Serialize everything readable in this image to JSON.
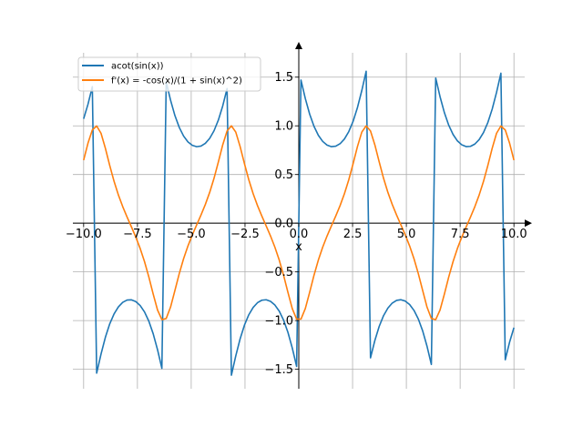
{
  "chart_data": {
    "type": "line",
    "title": "",
    "xlabel": "x",
    "ylabel": "",
    "xlim": [
      -10.5,
      10.5
    ],
    "ylim": [
      -1.7,
      1.75
    ],
    "grid": true,
    "legend_position": "top-left",
    "x_ticks": [
      -10.0,
      -7.5,
      -5.0,
      -2.5,
      0.0,
      2.5,
      5.0,
      7.5,
      10.0
    ],
    "x_tick_labels": [
      "−10.0",
      "−7.5",
      "−5.0",
      "−2.5",
      "0.0",
      "2.5",
      "5.0",
      "7.5",
      "10.0"
    ],
    "y_ticks": [
      -1.5,
      -1.0,
      -0.5,
      0.0,
      0.5,
      1.0,
      1.5
    ],
    "y_tick_labels": [
      "−1.5",
      "−1.0",
      "−0.5",
      "0.0",
      "0.5",
      "1.0",
      "1.5"
    ],
    "x_range": [
      -10,
      10
    ],
    "samples": 100,
    "series": [
      {
        "name": "acot(sin(x))",
        "color": "#1f77b4",
        "function": "acot_sin"
      },
      {
        "name": "f'(x) = -cos(x)/(1 + sin(x)^2)",
        "color": "#ff7f0e",
        "function": "derivative"
      }
    ]
  }
}
